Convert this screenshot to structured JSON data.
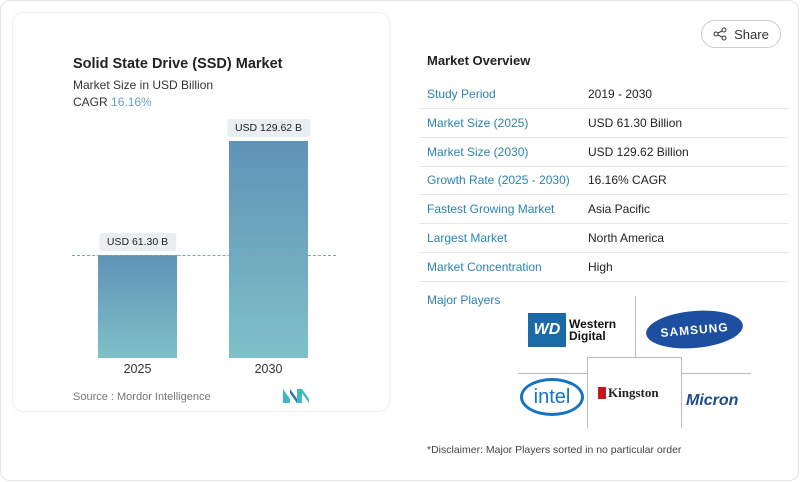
{
  "header": {
    "share_label": "Share",
    "share_icon": "share-icon"
  },
  "chart_card": {
    "title": "Solid State Drive (SSD) Market",
    "subtitle": "Market Size in USD Billion",
    "cagr_label": "CAGR",
    "cagr_value": "16.16%",
    "source": "Source :  Mordor Intelligence",
    "logo": "Mordor Intelligence logo"
  },
  "chart_data": {
    "type": "bar",
    "categories": [
      "2025",
      "2030"
    ],
    "values": [
      61.3,
      129.62
    ],
    "data_labels": [
      "USD 61.30 B",
      "USD 129.62 B"
    ],
    "title": "Solid State Drive (SSD) Market",
    "ylabel": "Market Size in USD Billion",
    "colors": [
      "#5f93b7",
      "#7fc0c8"
    ]
  },
  "overview": {
    "title": "Market Overview",
    "rows": [
      {
        "label": "Study Period",
        "value": "2019 - 2030"
      },
      {
        "label": "Market Size (2025)",
        "value": "USD 61.30 Billion"
      },
      {
        "label": "Market Size (2030)",
        "value": "USD 129.62 Billion"
      },
      {
        "label": "Growth Rate (2025 - 2030)",
        "value": "16.16% CAGR"
      },
      {
        "label": "Fastest Growing Market",
        "value": "Asia Pacific"
      },
      {
        "label": "Largest Market",
        "value": "North America"
      },
      {
        "label": "Market Concentration",
        "value": "High"
      }
    ]
  },
  "players": {
    "title": "Major Players",
    "logos": [
      "Western Digital",
      "Samsung",
      "Intel",
      "Kingston Technology",
      "Micron"
    ],
    "disclaimer": "*Disclaimer: Major Players sorted in no particular order"
  }
}
